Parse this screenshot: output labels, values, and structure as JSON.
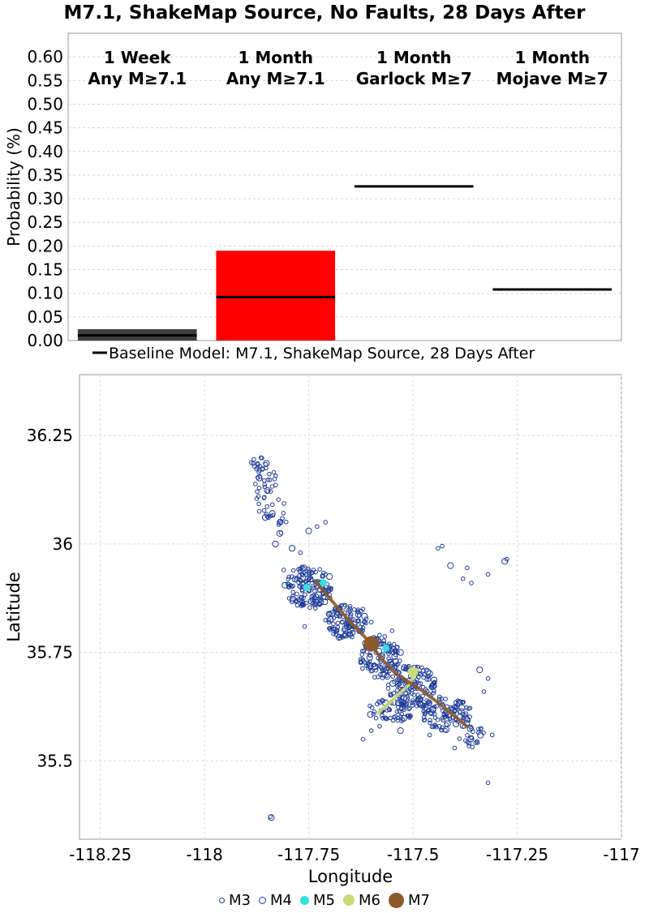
{
  "title": "M7.1, ShakeMap Source, No Faults, 28 Days After",
  "chart_data": [
    {
      "type": "bar",
      "ylabel": "Probability (%)",
      "ylim": [
        0,
        0.65
      ],
      "yticks": [
        "0.00",
        "0.05",
        "0.10",
        "0.15",
        "0.20",
        "0.25",
        "0.30",
        "0.35",
        "0.40",
        "0.45",
        "0.50",
        "0.55",
        "0.60"
      ],
      "grid": true,
      "categories": [
        {
          "line1": "1 Week",
          "line2": "Any M≥7.1"
        },
        {
          "line1": "1 Month",
          "line2": "Any M≥7.1"
        },
        {
          "line1": "1 Month",
          "line2": "Garlock M≥7"
        },
        {
          "line1": "1 Month",
          "line2": "Mojave M≥7"
        }
      ],
      "values": [
        0.024,
        0.19,
        0.0,
        0.0
      ],
      "bar_colors": [
        "#3f3f3f",
        "#ff0000",
        "#ffffff",
        "#ffffff"
      ],
      "baseline": {
        "name": "Baseline Model: M7.1, ShakeMap Source, 28 Days After",
        "values": [
          0.011,
          0.092,
          0.326,
          0.108
        ],
        "color": "#000000"
      },
      "legend_position": "bottom"
    },
    {
      "type": "scatter",
      "xlabel": "Longitude",
      "ylabel": "Latitude",
      "xlim": [
        -118.3,
        -117.0
      ],
      "ylim": [
        35.32,
        36.39
      ],
      "xticks": [
        "-118.25",
        "-118",
        "-117.75",
        "-117.5",
        "-117.25",
        "-117"
      ],
      "yticks": [
        "35.5",
        "35.75",
        "36",
        "36.25"
      ],
      "grid": true,
      "rupture_trace": {
        "color": "#8b5a2b",
        "points": [
          [
            -117.735,
            35.915
          ],
          [
            -117.7,
            35.875
          ],
          [
            -117.655,
            35.825
          ],
          [
            -117.61,
            35.78
          ],
          [
            -117.575,
            35.735
          ],
          [
            -117.54,
            35.7
          ],
          [
            -117.49,
            35.67
          ],
          [
            -117.44,
            35.635
          ],
          [
            -117.37,
            35.58
          ]
        ]
      },
      "m6_trace": {
        "color": "#c8dc78",
        "points": [
          [
            -117.585,
            35.61
          ],
          [
            -117.55,
            35.64
          ],
          [
            -117.51,
            35.675
          ],
          [
            -117.49,
            35.71
          ]
        ]
      },
      "large_events": [
        {
          "mag": "M5",
          "lon": -117.755,
          "lat": 35.9,
          "color": "#33e0e0"
        },
        {
          "mag": "M5",
          "lon": -117.715,
          "lat": 35.91,
          "color": "#33e0e0"
        },
        {
          "mag": "M5",
          "lon": -117.565,
          "lat": 35.76,
          "color": "#33e0e0"
        },
        {
          "mag": "M6",
          "lon": -117.5,
          "lat": 35.705,
          "color": "#c8dc78"
        },
        {
          "mag": "M7",
          "lon": -117.6,
          "lat": 35.77,
          "color": "#8b5a2b"
        }
      ],
      "clusters": [
        {
          "lon": -117.75,
          "lat": 35.9,
          "dlon": 0.06,
          "dlat": 0.05,
          "n": 150
        },
        {
          "lon": -117.66,
          "lat": 35.82,
          "dlon": 0.05,
          "dlat": 0.04,
          "n": 110
        },
        {
          "lon": -117.58,
          "lat": 35.74,
          "dlon": 0.05,
          "dlat": 0.05,
          "n": 110
        },
        {
          "lon": -117.5,
          "lat": 35.67,
          "dlon": 0.06,
          "dlat": 0.05,
          "n": 140
        },
        {
          "lon": -117.42,
          "lat": 35.61,
          "dlon": 0.06,
          "dlat": 0.04,
          "n": 100
        },
        {
          "lon": -117.55,
          "lat": 35.62,
          "dlon": 0.06,
          "dlat": 0.03,
          "n": 60
        },
        {
          "lon": -117.36,
          "lat": 35.56,
          "dlon": 0.03,
          "dlat": 0.03,
          "n": 25
        },
        {
          "lon": -117.85,
          "lat": 36.12,
          "dlon": 0.03,
          "dlat": 0.06,
          "n": 35
        },
        {
          "lon": -117.87,
          "lat": 36.18,
          "dlon": 0.02,
          "dlat": 0.02,
          "n": 18
        },
        {
          "lon": -117.82,
          "lat": 36.06,
          "dlon": 0.02,
          "dlat": 0.04,
          "n": 12
        }
      ],
      "isolated_events": [
        [
          -117.83,
          36.0
        ],
        [
          -117.77,
          35.98
        ],
        [
          -117.73,
          36.04
        ],
        [
          -117.71,
          36.05
        ],
        [
          -117.75,
          36.03
        ],
        [
          -117.62,
          35.85
        ],
        [
          -117.6,
          35.82
        ],
        [
          -117.55,
          35.8
        ],
        [
          -117.53,
          35.75
        ],
        [
          -117.51,
          35.62
        ],
        [
          -117.44,
          35.99
        ],
        [
          -117.43,
          35.995
        ],
        [
          -117.41,
          35.95
        ],
        [
          -117.38,
          35.92
        ],
        [
          -117.36,
          35.91
        ],
        [
          -117.37,
          35.945
        ],
        [
          -117.28,
          35.96
        ],
        [
          -117.275,
          35.965
        ],
        [
          -117.32,
          35.93
        ],
        [
          -117.32,
          35.69
        ],
        [
          -117.34,
          35.71
        ],
        [
          -117.33,
          35.66
        ],
        [
          -117.31,
          35.56
        ],
        [
          -117.32,
          35.45
        ],
        [
          -117.84,
          35.37
        ],
        [
          -117.842,
          35.372
        ],
        [
          -117.76,
          35.81
        ],
        [
          -117.81,
          35.94
        ],
        [
          -117.79,
          35.99
        ],
        [
          -117.58,
          35.58
        ],
        [
          -117.6,
          35.57
        ],
        [
          -117.62,
          35.55
        ],
        [
          -117.53,
          35.57
        ],
        [
          -117.46,
          35.56
        ],
        [
          -117.4,
          35.53
        ]
      ],
      "legend": [
        {
          "label": "M3",
          "style": "hollow-small",
          "color": "#1f3c99"
        },
        {
          "label": "M4",
          "style": "hollow",
          "color": "#1f3c99"
        },
        {
          "label": "M5",
          "style": "filled",
          "color": "#33e0e0"
        },
        {
          "label": "M6",
          "style": "filled",
          "color": "#c8dc78"
        },
        {
          "label": "M7",
          "style": "filled",
          "color": "#8b5a2b"
        }
      ]
    }
  ]
}
